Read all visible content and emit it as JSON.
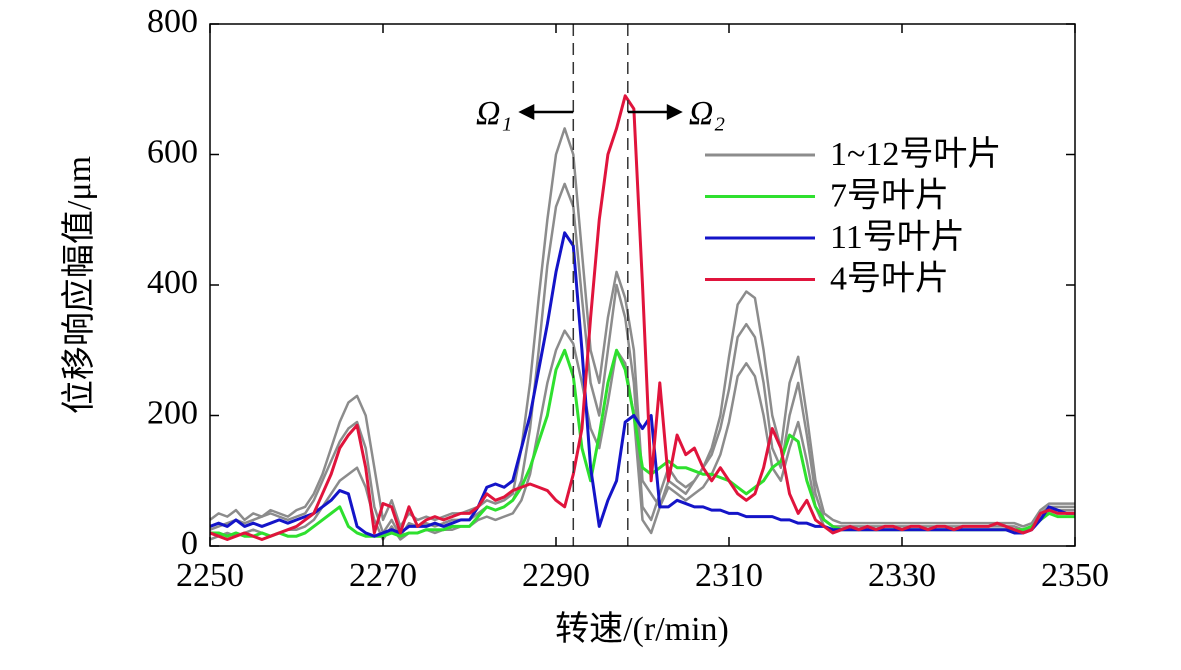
{
  "chart_data": {
    "type": "line",
    "xlabel": "转速/(r/min)",
    "ylabel": "位移响应幅值/μm",
    "xlim": [
      2250,
      2350
    ],
    "xticks": [
      2250,
      2270,
      2290,
      2310,
      2330,
      2350
    ],
    "ylim": [
      0,
      800
    ],
    "yticks": [
      0,
      200,
      400,
      600,
      800
    ],
    "legend": "upper right",
    "markers": [
      {
        "x": 2292,
        "label": "Ω₁",
        "direction": "left"
      },
      {
        "x": 2298.3,
        "label": "Ω₂",
        "direction": "right"
      }
    ],
    "x": [
      2250,
      2251,
      2252,
      2253,
      2254,
      2255,
      2256,
      2257,
      2258,
      2259,
      2260,
      2261,
      2262,
      2263,
      2264,
      2265,
      2266,
      2267,
      2268,
      2269,
      2270,
      2271,
      2272,
      2273,
      2274,
      2275,
      2276,
      2277,
      2278,
      2279,
      2280,
      2281,
      2282,
      2283,
      2284,
      2285,
      2286,
      2287,
      2288,
      2289,
      2290,
      2291,
      2292,
      2293,
      2294,
      2295,
      2296,
      2297,
      2298,
      2299,
      2300,
      2301,
      2302,
      2303,
      2304,
      2305,
      2306,
      2307,
      2308,
      2309,
      2310,
      2311,
      2312,
      2313,
      2314,
      2315,
      2316,
      2317,
      2318,
      2319,
      2320,
      2321,
      2322,
      2323,
      2324,
      2325,
      2326,
      2327,
      2328,
      2329,
      2330,
      2331,
      2332,
      2333,
      2334,
      2335,
      2336,
      2337,
      2338,
      2339,
      2340,
      2341,
      2342,
      2343,
      2344,
      2345,
      2346,
      2347,
      2348,
      2349,
      2350
    ],
    "series": [
      {
        "name": "1~12号叶片",
        "color": "#8c8c8c",
        "values": [
          40,
          50,
          45,
          55,
          40,
          50,
          45,
          55,
          50,
          45,
          55,
          60,
          80,
          110,
          150,
          190,
          220,
          230,
          200,
          120,
          40,
          70,
          30,
          50,
          40,
          45,
          40,
          45,
          50,
          50,
          55,
          60,
          70,
          65,
          70,
          80,
          150,
          250,
          380,
          500,
          600,
          640,
          600,
          450,
          300,
          250,
          350,
          420,
          380,
          300,
          100,
          80,
          60,
          100,
          90,
          80,
          100,
          120,
          150,
          200,
          290,
          370,
          390,
          380,
          300,
          200,
          150,
          250,
          290,
          200,
          100,
          50,
          40,
          35,
          35,
          35,
          35,
          35,
          35,
          35,
          35,
          35,
          35,
          35,
          35,
          35,
          35,
          35,
          35,
          35,
          35,
          35,
          35,
          35,
          30,
          35,
          55,
          65,
          65,
          65,
          65
        ]
      },
      {
        "color": "#8c8c8c",
        "values": [
          25,
          30,
          35,
          40,
          35,
          40,
          45,
          50,
          45,
          40,
          45,
          50,
          70,
          100,
          130,
          160,
          180,
          190,
          150,
          60,
          20,
          40,
          15,
          35,
          30,
          35,
          30,
          35,
          40,
          40,
          40,
          50,
          60,
          55,
          60,
          70,
          100,
          180,
          300,
          430,
          520,
          555,
          520,
          380,
          250,
          200,
          300,
          400,
          350,
          250,
          60,
          40,
          80,
          120,
          100,
          90,
          100,
          120,
          140,
          180,
          240,
          320,
          340,
          320,
          250,
          150,
          120,
          200,
          250,
          170,
          80,
          40,
          30,
          30,
          30,
          30,
          30,
          30,
          30,
          30,
          30,
          30,
          30,
          30,
          30,
          30,
          30,
          30,
          30,
          30,
          30,
          30,
          30,
          30,
          25,
          30,
          50,
          60,
          60,
          60,
          60
        ]
      },
      {
        "color": "#8c8c8c",
        "values": [
          10,
          15,
          20,
          15,
          20,
          25,
          20,
          15,
          20,
          25,
          25,
          30,
          40,
          60,
          80,
          100,
          110,
          120,
          90,
          40,
          10,
          30,
          10,
          20,
          20,
          25,
          20,
          25,
          25,
          30,
          30,
          40,
          45,
          40,
          45,
          50,
          70,
          110,
          180,
          250,
          300,
          330,
          310,
          250,
          180,
          150,
          220,
          300,
          280,
          200,
          40,
          20,
          60,
          90,
          80,
          70,
          80,
          90,
          110,
          140,
          190,
          260,
          280,
          260,
          200,
          120,
          100,
          150,
          190,
          130,
          60,
          30,
          25,
          25,
          25,
          25,
          25,
          25,
          25,
          25,
          25,
          25,
          25,
          25,
          25,
          25,
          25,
          25,
          25,
          25,
          25,
          25,
          25,
          25,
          20,
          25,
          45,
          55,
          55,
          55,
          55
        ]
      },
      {
        "name": "7号叶片",
        "color": "#2ee02e",
        "values": [
          20,
          20,
          15,
          20,
          15,
          15,
          20,
          15,
          20,
          15,
          15,
          20,
          30,
          40,
          50,
          60,
          30,
          20,
          15,
          15,
          15,
          20,
          15,
          20,
          20,
          25,
          25,
          25,
          30,
          30,
          30,
          45,
          60,
          55,
          60,
          70,
          90,
          120,
          160,
          200,
          270,
          300,
          260,
          150,
          100,
          170,
          250,
          300,
          270,
          200,
          120,
          110,
          120,
          130,
          120,
          120,
          115,
          110,
          110,
          105,
          100,
          90,
          80,
          90,
          100,
          120,
          130,
          170,
          160,
          100,
          60,
          40,
          30,
          25,
          25,
          25,
          25,
          25,
          25,
          25,
          25,
          25,
          25,
          25,
          25,
          25,
          25,
          25,
          25,
          25,
          25,
          25,
          25,
          25,
          25,
          30,
          40,
          50,
          45,
          45,
          45
        ]
      },
      {
        "name": "11号叶片",
        "color": "#1414c8",
        "values": [
          30,
          35,
          30,
          40,
          30,
          35,
          30,
          35,
          40,
          35,
          40,
          45,
          50,
          60,
          70,
          85,
          80,
          30,
          20,
          15,
          20,
          25,
          20,
          30,
          30,
          30,
          35,
          30,
          35,
          40,
          40,
          60,
          90,
          95,
          90,
          100,
          150,
          200,
          270,
          340,
          420,
          480,
          460,
          300,
          120,
          30,
          70,
          100,
          190,
          200,
          180,
          200,
          60,
          60,
          70,
          65,
          60,
          60,
          55,
          55,
          50,
          50,
          45,
          45,
          45,
          45,
          40,
          40,
          35,
          35,
          30,
          30,
          25,
          25,
          25,
          25,
          25,
          25,
          25,
          25,
          25,
          25,
          25,
          25,
          25,
          25,
          25,
          25,
          25,
          25,
          25,
          25,
          25,
          20,
          20,
          25,
          40,
          60,
          55,
          50,
          50
        ]
      },
      {
        "name": "4号叶片",
        "color": "#e0143c",
        "values": [
          20,
          15,
          10,
          15,
          20,
          15,
          10,
          15,
          20,
          25,
          30,
          40,
          50,
          80,
          110,
          150,
          170,
          185,
          120,
          20,
          65,
          60,
          20,
          60,
          30,
          40,
          45,
          40,
          45,
          50,
          50,
          60,
          80,
          70,
          75,
          85,
          90,
          95,
          90,
          85,
          70,
          60,
          110,
          180,
          350,
          500,
          600,
          640,
          690,
          670,
          400,
          100,
          250,
          100,
          170,
          140,
          150,
          120,
          100,
          120,
          100,
          80,
          70,
          80,
          120,
          180,
          150,
          80,
          50,
          70,
          40,
          30,
          20,
          25,
          30,
          25,
          30,
          25,
          30,
          30,
          25,
          30,
          30,
          25,
          30,
          30,
          25,
          30,
          30,
          30,
          30,
          35,
          30,
          25,
          20,
          25,
          50,
          55,
          50,
          50,
          50
        ]
      }
    ]
  }
}
